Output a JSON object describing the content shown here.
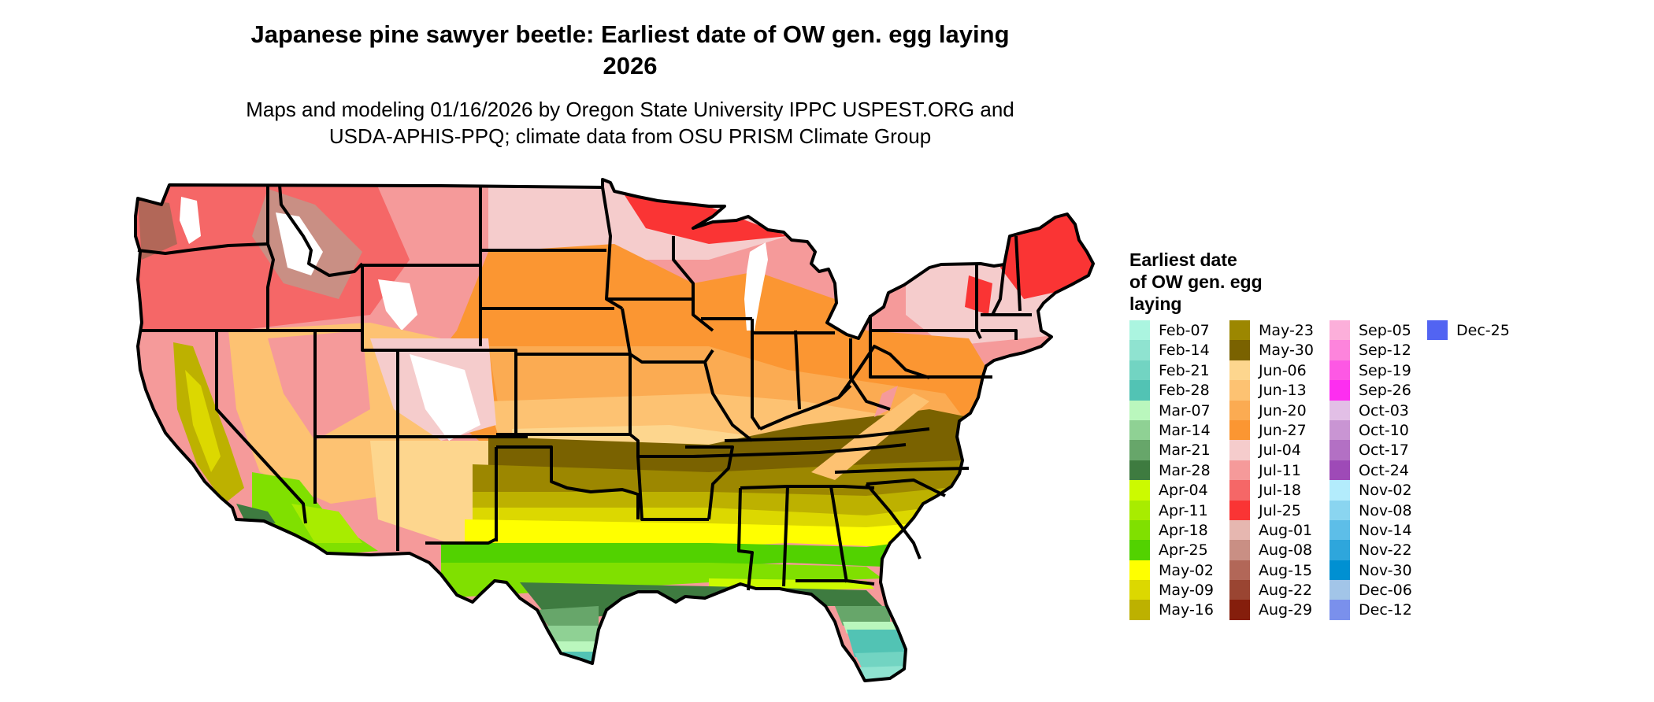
{
  "header": {
    "title_line1": "Japanese pine sawyer beetle: Earliest date of OW gen. egg laying",
    "title_line2": "2026",
    "subtitle_line1": "Maps and modeling 01/16/2026 by Oregon State University IPPC USPEST.ORG and",
    "subtitle_line2": "USDA-APHIS-PPQ; climate data from OSU PRISM Climate Group"
  },
  "map": {
    "region": "Contiguous United States",
    "border_color": "#000000",
    "no_data_color": "#ffffff"
  },
  "legend": {
    "title_line1": "Earliest date",
    "title_line2": "of OW gen. egg",
    "title_line3": "laying",
    "columns": [
      [
        {
          "label": "Feb-07",
          "color": "#abf5e0"
        },
        {
          "label": "Feb-14",
          "color": "#8fe3d0"
        },
        {
          "label": "Feb-21",
          "color": "#72d4c2"
        },
        {
          "label": "Feb-28",
          "color": "#52c3b4"
        },
        {
          "label": "Mar-07",
          "color": "#baf7bd"
        },
        {
          "label": "Mar-14",
          "color": "#8fd194"
        },
        {
          "label": "Mar-21",
          "color": "#67a66a"
        },
        {
          "label": "Mar-28",
          "color": "#3e7b40"
        },
        {
          "label": "Apr-04",
          "color": "#ccfa00"
        },
        {
          "label": "Apr-11",
          "color": "#a8ec00"
        },
        {
          "label": "Apr-18",
          "color": "#80e000"
        },
        {
          "label": "Apr-25",
          "color": "#52d200"
        },
        {
          "label": "May-02",
          "color": "#ffff00"
        },
        {
          "label": "May-09",
          "color": "#dcd800"
        },
        {
          "label": "May-16",
          "color": "#bdb100"
        }
      ],
      [
        {
          "label": "May-23",
          "color": "#9c8700"
        },
        {
          "label": "May-30",
          "color": "#7a6200"
        },
        {
          "label": "Jun-06",
          "color": "#fdd68e"
        },
        {
          "label": "Jun-13",
          "color": "#fdc272"
        },
        {
          "label": "Jun-20",
          "color": "#fbab52"
        },
        {
          "label": "Jun-27",
          "color": "#fb9632"
        },
        {
          "label": "Jul-04",
          "color": "#f5cccc"
        },
        {
          "label": "Jul-11",
          "color": "#f59a9a"
        },
        {
          "label": "Jul-18",
          "color": "#f56767"
        },
        {
          "label": "Jul-25",
          "color": "#fa3434"
        },
        {
          "label": "Aug-01",
          "color": "#e6b7b0"
        },
        {
          "label": "Aug-08",
          "color": "#c98f84"
        },
        {
          "label": "Aug-15",
          "color": "#b26758"
        },
        {
          "label": "Aug-22",
          "color": "#9a4532"
        },
        {
          "label": "Aug-29",
          "color": "#851e0c"
        }
      ],
      [
        {
          "label": "Sep-05",
          "color": "#fcafda"
        },
        {
          "label": "Sep-12",
          "color": "#fd84dc"
        },
        {
          "label": "Sep-19",
          "color": "#fd58e4"
        },
        {
          "label": "Sep-26",
          "color": "#fd2ef0"
        },
        {
          "label": "Oct-03",
          "color": "#e2bfe6"
        },
        {
          "label": "Oct-10",
          "color": "#c995d3"
        },
        {
          "label": "Oct-17",
          "color": "#b370c4"
        },
        {
          "label": "Oct-24",
          "color": "#9e4ab7"
        },
        {
          "label": "Nov-02",
          "color": "#b3ecfc"
        },
        {
          "label": "Nov-08",
          "color": "#8ad5f0"
        },
        {
          "label": "Nov-14",
          "color": "#5dbee8"
        },
        {
          "label": "Nov-22",
          "color": "#2ea6dc"
        },
        {
          "label": "Nov-30",
          "color": "#0090d2"
        },
        {
          "label": "Dec-06",
          "color": "#a2c5e8"
        },
        {
          "label": "Dec-12",
          "color": "#7a90ec"
        }
      ],
      [
        {
          "label": "Dec-25",
          "color": "#5264f2"
        }
      ]
    ]
  }
}
